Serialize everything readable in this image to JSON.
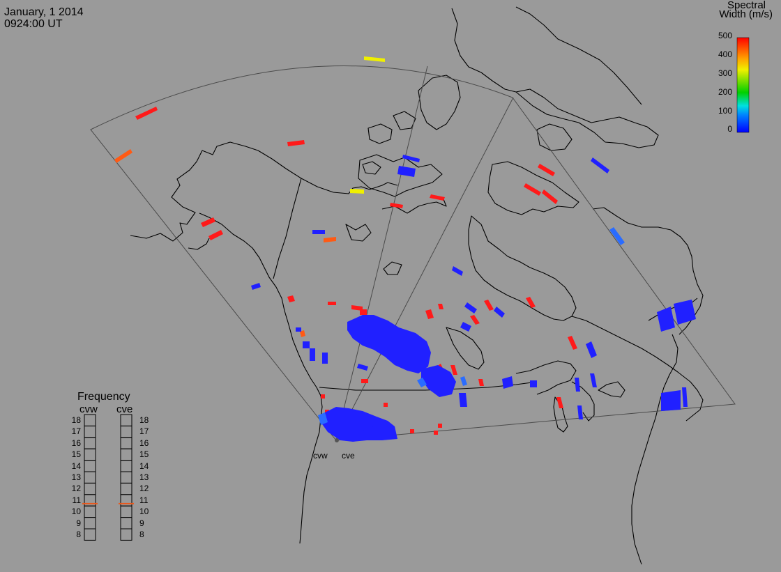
{
  "header": {
    "date": "January, 1 2014",
    "time": "0924:00 UT"
  },
  "colorbar": {
    "title_line1": "Spectral",
    "title_line2": "Width (m/s)",
    "ticks": [
      "500",
      "400",
      "300",
      "200",
      "100",
      "0"
    ],
    "min": 0,
    "max": 500
  },
  "radars": {
    "west_label": "cvw",
    "east_label": "cve"
  },
  "frequency_panel": {
    "title": "Frequency",
    "col_west": "cvw",
    "col_east": "cve",
    "levels": [
      "18",
      "17",
      "16",
      "15",
      "14",
      "13",
      "12",
      "11",
      "10",
      "9",
      "8"
    ],
    "indicator_color": "#e8581c",
    "cvw_mhz": 10.7,
    "cve_mhz": 10.7
  },
  "colors": {
    "background": "#9a9a9a",
    "coastline": "#000000",
    "fov": "#505050",
    "red": "#ff1a1a",
    "orange": "#ff5a14",
    "yellow": "#f0f000",
    "blue": "#2020ff",
    "lightblue": "#2a6cff"
  }
}
